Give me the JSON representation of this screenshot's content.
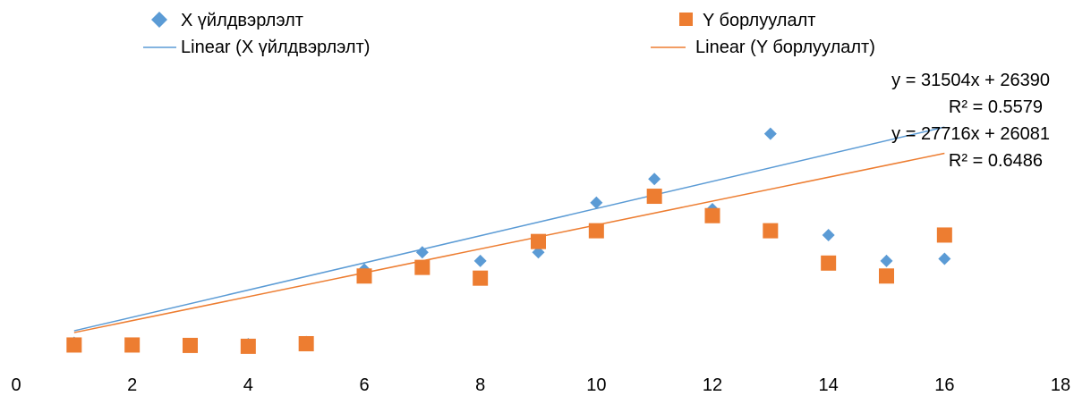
{
  "chart_data": {
    "type": "scatter",
    "xlim": [
      0,
      18
    ],
    "xticks": [
      0,
      2,
      4,
      6,
      8,
      10,
      12,
      14,
      16,
      18
    ],
    "ylim": [
      0,
      680000
    ],
    "y_axis_labels_shown": false,
    "grid": false,
    "legend_position": "top",
    "series": [
      {
        "name": "X үйлдвэрлэлт",
        "marker": "diamond",
        "color": "#5B9BD5",
        "x": [
          1,
          2,
          3,
          4,
          5,
          6,
          7,
          8,
          9,
          10,
          11,
          12,
          13,
          14,
          15,
          16
        ],
        "y": [
          30000,
          27000,
          26000,
          27000,
          32000,
          200000,
          240000,
          220000,
          240000,
          355000,
          410000,
          340000,
          515000,
          280000,
          220000,
          225000
        ]
      },
      {
        "name": "Y борлуулалт",
        "marker": "square",
        "color": "#ED7D31",
        "x": [
          1,
          2,
          3,
          4,
          5,
          6,
          7,
          8,
          9,
          10,
          11,
          12,
          13,
          14,
          15,
          16
        ],
        "y": [
          25000,
          25000,
          24000,
          22000,
          28000,
          185000,
          205000,
          180000,
          265000,
          290000,
          370000,
          325000,
          290000,
          215000,
          185000,
          280000
        ]
      }
    ],
    "trendlines": [
      {
        "name": "Linear (X үйлдвэрлэлт)",
        "color": "#5B9BD5",
        "slope": 31504,
        "intercept": 26390,
        "equation": "y = 31504x + 26390",
        "r2": "R² = 0.5579"
      },
      {
        "name": "Linear (Y борлуулалт)",
        "color": "#ED7D31",
        "slope": 27716,
        "intercept": 26081,
        "equation": "y = 27716x + 26081",
        "r2": "R² = 0.6486"
      }
    ]
  }
}
